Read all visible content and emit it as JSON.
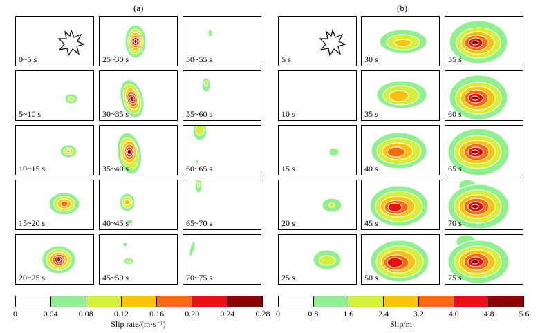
{
  "figure_a": {
    "label": "(a)",
    "panels": [
      "0~5 s",
      "5~10 s",
      "10~15 s",
      "15~20 s",
      "20~25 s",
      "25~30 s",
      "30~35 s",
      "35~40 s",
      "40~45 s",
      "45~50 s",
      "50~55 s",
      "55~60 s",
      "60~65 s",
      "65~70 s",
      "70~75 s"
    ],
    "colorbar": {
      "ticks": [
        "0",
        "0.04",
        "0.08",
        "0.12",
        "0.16",
        "0.20",
        "0.24",
        "0.28"
      ],
      "title": "Slip rate/(m·s⁻¹)"
    }
  },
  "figure_b": {
    "label": "(b)",
    "panels": [
      "5 s",
      "10 s",
      "15 s",
      "20 s",
      "25 s",
      "30 s",
      "35 s",
      "40 s",
      "45 s",
      "50 s",
      "55 s",
      "60 s",
      "65 s",
      "70 s",
      "75 s"
    ],
    "colorbar": {
      "ticks": [
        "0",
        "0.8",
        "1.6",
        "2.4",
        "3.2",
        "4.0",
        "4.8",
        "5.6"
      ],
      "title": "Slip/m"
    }
  },
  "colors": [
    "#ffffff",
    "#90f090",
    "#d4f03c",
    "#fcc010",
    "#f86a10",
    "#e81010",
    "#8c0000"
  ]
}
